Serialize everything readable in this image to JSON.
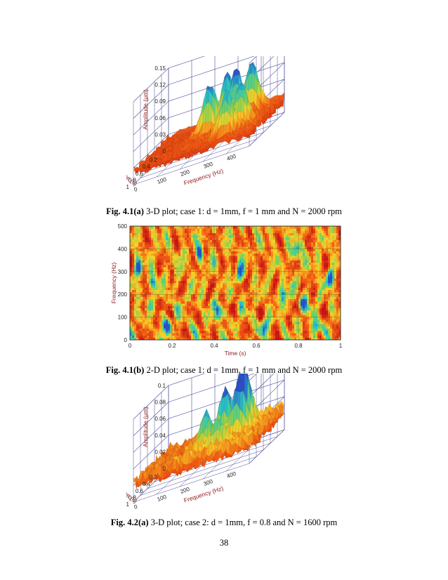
{
  "figures": [
    {
      "id": "fig-4-1a",
      "caption_label": "Fig. 4.1(a)",
      "caption_text": "3-D plot; case 1: d = 1mm, f = 1 mm and N = 2000 rpm",
      "chart_data": {
        "type": "surface3d",
        "zlabel": "Amplitude (μm)",
        "xlabel": "Time (s)",
        "ylabel": "Frequency (Hz)",
        "z_ticks": [
          "0",
          "0.03",
          "0.06",
          "0.09",
          "0.12",
          "0.15"
        ],
        "time_ticks": [
          "0",
          "0.2",
          "0.4",
          "0.6",
          "0.8",
          "1"
        ],
        "freq_ticks": [
          "0",
          "100",
          "200",
          "300",
          "400"
        ],
        "zlim": [
          0,
          0.15
        ],
        "time_range": [
          0,
          1
        ],
        "freq_range": [
          0,
          500
        ],
        "peaks": [
          {
            "t": 0.15,
            "f": 380,
            "z": 0.095
          },
          {
            "t": 0.3,
            "f": 300,
            "z": 0.1
          },
          {
            "t": 0.45,
            "f": 360,
            "z": 0.11
          },
          {
            "t": 0.55,
            "f": 260,
            "z": 0.085
          },
          {
            "t": 0.7,
            "f": 420,
            "z": 0.09
          },
          {
            "t": 0.85,
            "f": 380,
            "z": 0.08
          }
        ]
      }
    },
    {
      "id": "fig-4-1b",
      "caption_label": "Fig. 4.1(b)",
      "caption_text": "2-D plot; case 1: d = 1mm, f = 1 mm and N = 2000 rpm",
      "chart_data": {
        "type": "heatmap",
        "xlabel": "Time (s)",
        "ylabel": "Frequency (Hz)",
        "x_ticks": [
          "0",
          "0.2",
          "0.4",
          "0.6",
          "0.8",
          "1"
        ],
        "y_ticks": [
          "0",
          "100",
          "200",
          "300",
          "400",
          "500"
        ],
        "xlim": [
          0,
          1
        ],
        "ylim": [
          0,
          500
        ],
        "grid": true,
        "hotspots": [
          {
            "t": 0.04,
            "f": 320
          },
          {
            "t": 0.11,
            "f": 250
          },
          {
            "t": 0.18,
            "f": 60
          },
          {
            "t": 0.33,
            "f": 380
          },
          {
            "t": 0.42,
            "f": 120
          },
          {
            "t": 0.52,
            "f": 300
          },
          {
            "t": 0.64,
            "f": 60
          },
          {
            "t": 0.73,
            "f": 200
          },
          {
            "t": 0.79,
            "f": 390
          },
          {
            "t": 0.82,
            "f": 160
          },
          {
            "t": 0.88,
            "f": 60
          },
          {
            "t": 0.95,
            "f": 270
          }
        ]
      }
    },
    {
      "id": "fig-4-2a",
      "caption_label": "Fig. 4.2(a)",
      "caption_text": "3-D plot; case 2: d = 1mm, f = 0.8 and N = 1600 rpm",
      "chart_data": {
        "type": "surface3d",
        "zlabel": "Amplitude (μm)",
        "xlabel": "Time (s)",
        "ylabel": "Frequency (Hz)",
        "z_ticks": [
          "0",
          "0.02",
          "0.04",
          "0.06",
          "0.08",
          "0.1"
        ],
        "time_ticks": [
          "0",
          "0.2",
          "0.4",
          "0.6",
          "0.8",
          "1"
        ],
        "freq_ticks": [
          "0",
          "100",
          "200",
          "300",
          "400"
        ],
        "zlim": [
          0,
          0.1
        ],
        "time_range": [
          0,
          1
        ],
        "freq_range": [
          0,
          500
        ],
        "peaks": [
          {
            "t": 0.2,
            "f": 350,
            "z": 0.07
          },
          {
            "t": 0.35,
            "f": 300,
            "z": 0.06
          },
          {
            "t": 0.5,
            "f": 380,
            "z": 0.055
          },
          {
            "t": 0.65,
            "f": 260,
            "z": 0.05
          },
          {
            "t": 0.8,
            "f": 330,
            "z": 0.04
          }
        ]
      }
    }
  ],
  "page_number": "38"
}
